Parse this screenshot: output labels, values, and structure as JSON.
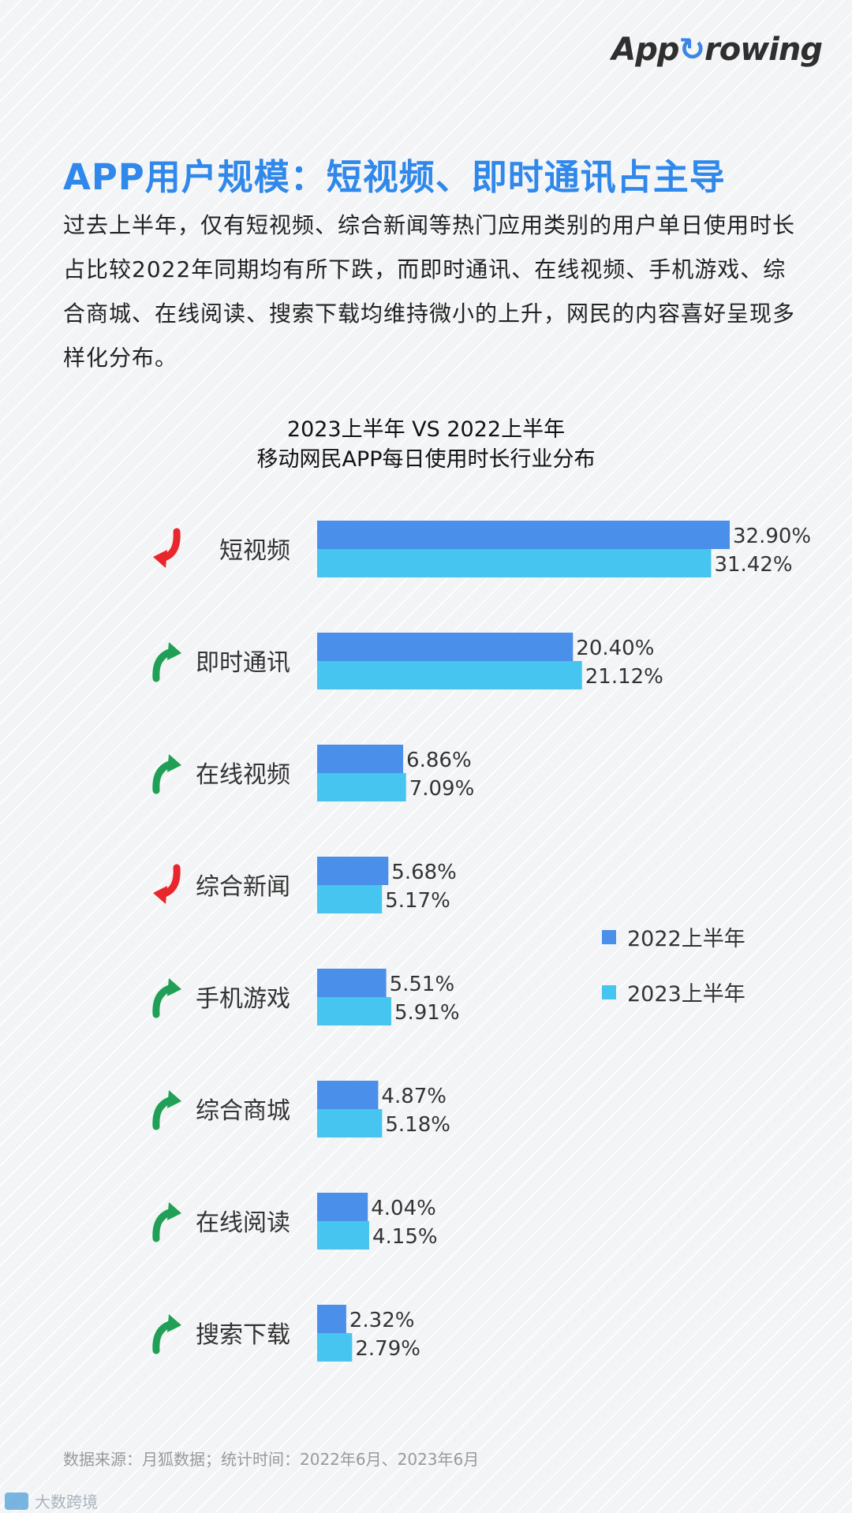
{
  "header": {
    "logo_text": "AppGrowing",
    "logo_prefix": "App",
    "logo_suffix": "rowing",
    "title": "APP用户规模：短视频、即时通讯占主导",
    "description": "过去上半年，仅有短视频、综合新闻等热门应用类别的用户单日使用时长占比较2022年同期均有所下跌，而即时通讯、在线视频、手机游戏、综合商城、在线阅读、搜索下载均维持微小的上升，网民的内容喜好呈现多样化分布。"
  },
  "chart_data": {
    "type": "bar",
    "orientation": "horizontal",
    "title": "2023上半年 VS 2022上半年",
    "subtitle": "移动网民APP每日使用时长行业分布",
    "categories": [
      "短视频",
      "即时通讯",
      "在线视频",
      "综合新闻",
      "手机游戏",
      "综合商城",
      "在线阅读",
      "搜索下载"
    ],
    "series": [
      {
        "name": "2022上半年",
        "values": [
          32.9,
          20.4,
          6.86,
          5.68,
          5.51,
          4.87,
          4.04,
          2.32
        ],
        "labels": [
          "32.90%",
          "20.40%",
          "6.86%",
          "5.68%",
          "5.51%",
          "4.87%",
          "4.04%",
          "2.32%"
        ],
        "color": "#4a8fe9"
      },
      {
        "name": "2023上半年",
        "values": [
          31.42,
          21.12,
          7.09,
          5.17,
          5.91,
          5.18,
          4.15,
          2.79
        ],
        "labels": [
          "31.42%",
          "21.12%",
          "7.09%",
          "5.17%",
          "5.91%",
          "5.18%",
          "4.15%",
          "2.79%"
        ],
        "color": "#45c5f0"
      }
    ],
    "trend": [
      "down",
      "up",
      "up",
      "down",
      "up",
      "up",
      "up",
      "up"
    ],
    "trend_colors": {
      "up": "#1fa056",
      "down": "#e8262b"
    },
    "legend_position": "right",
    "grid": false
  },
  "footer": {
    "source": "数据来源：月狐数据；统计时间：2022年6月、2023年6月",
    "watermark": "大数跨境"
  }
}
